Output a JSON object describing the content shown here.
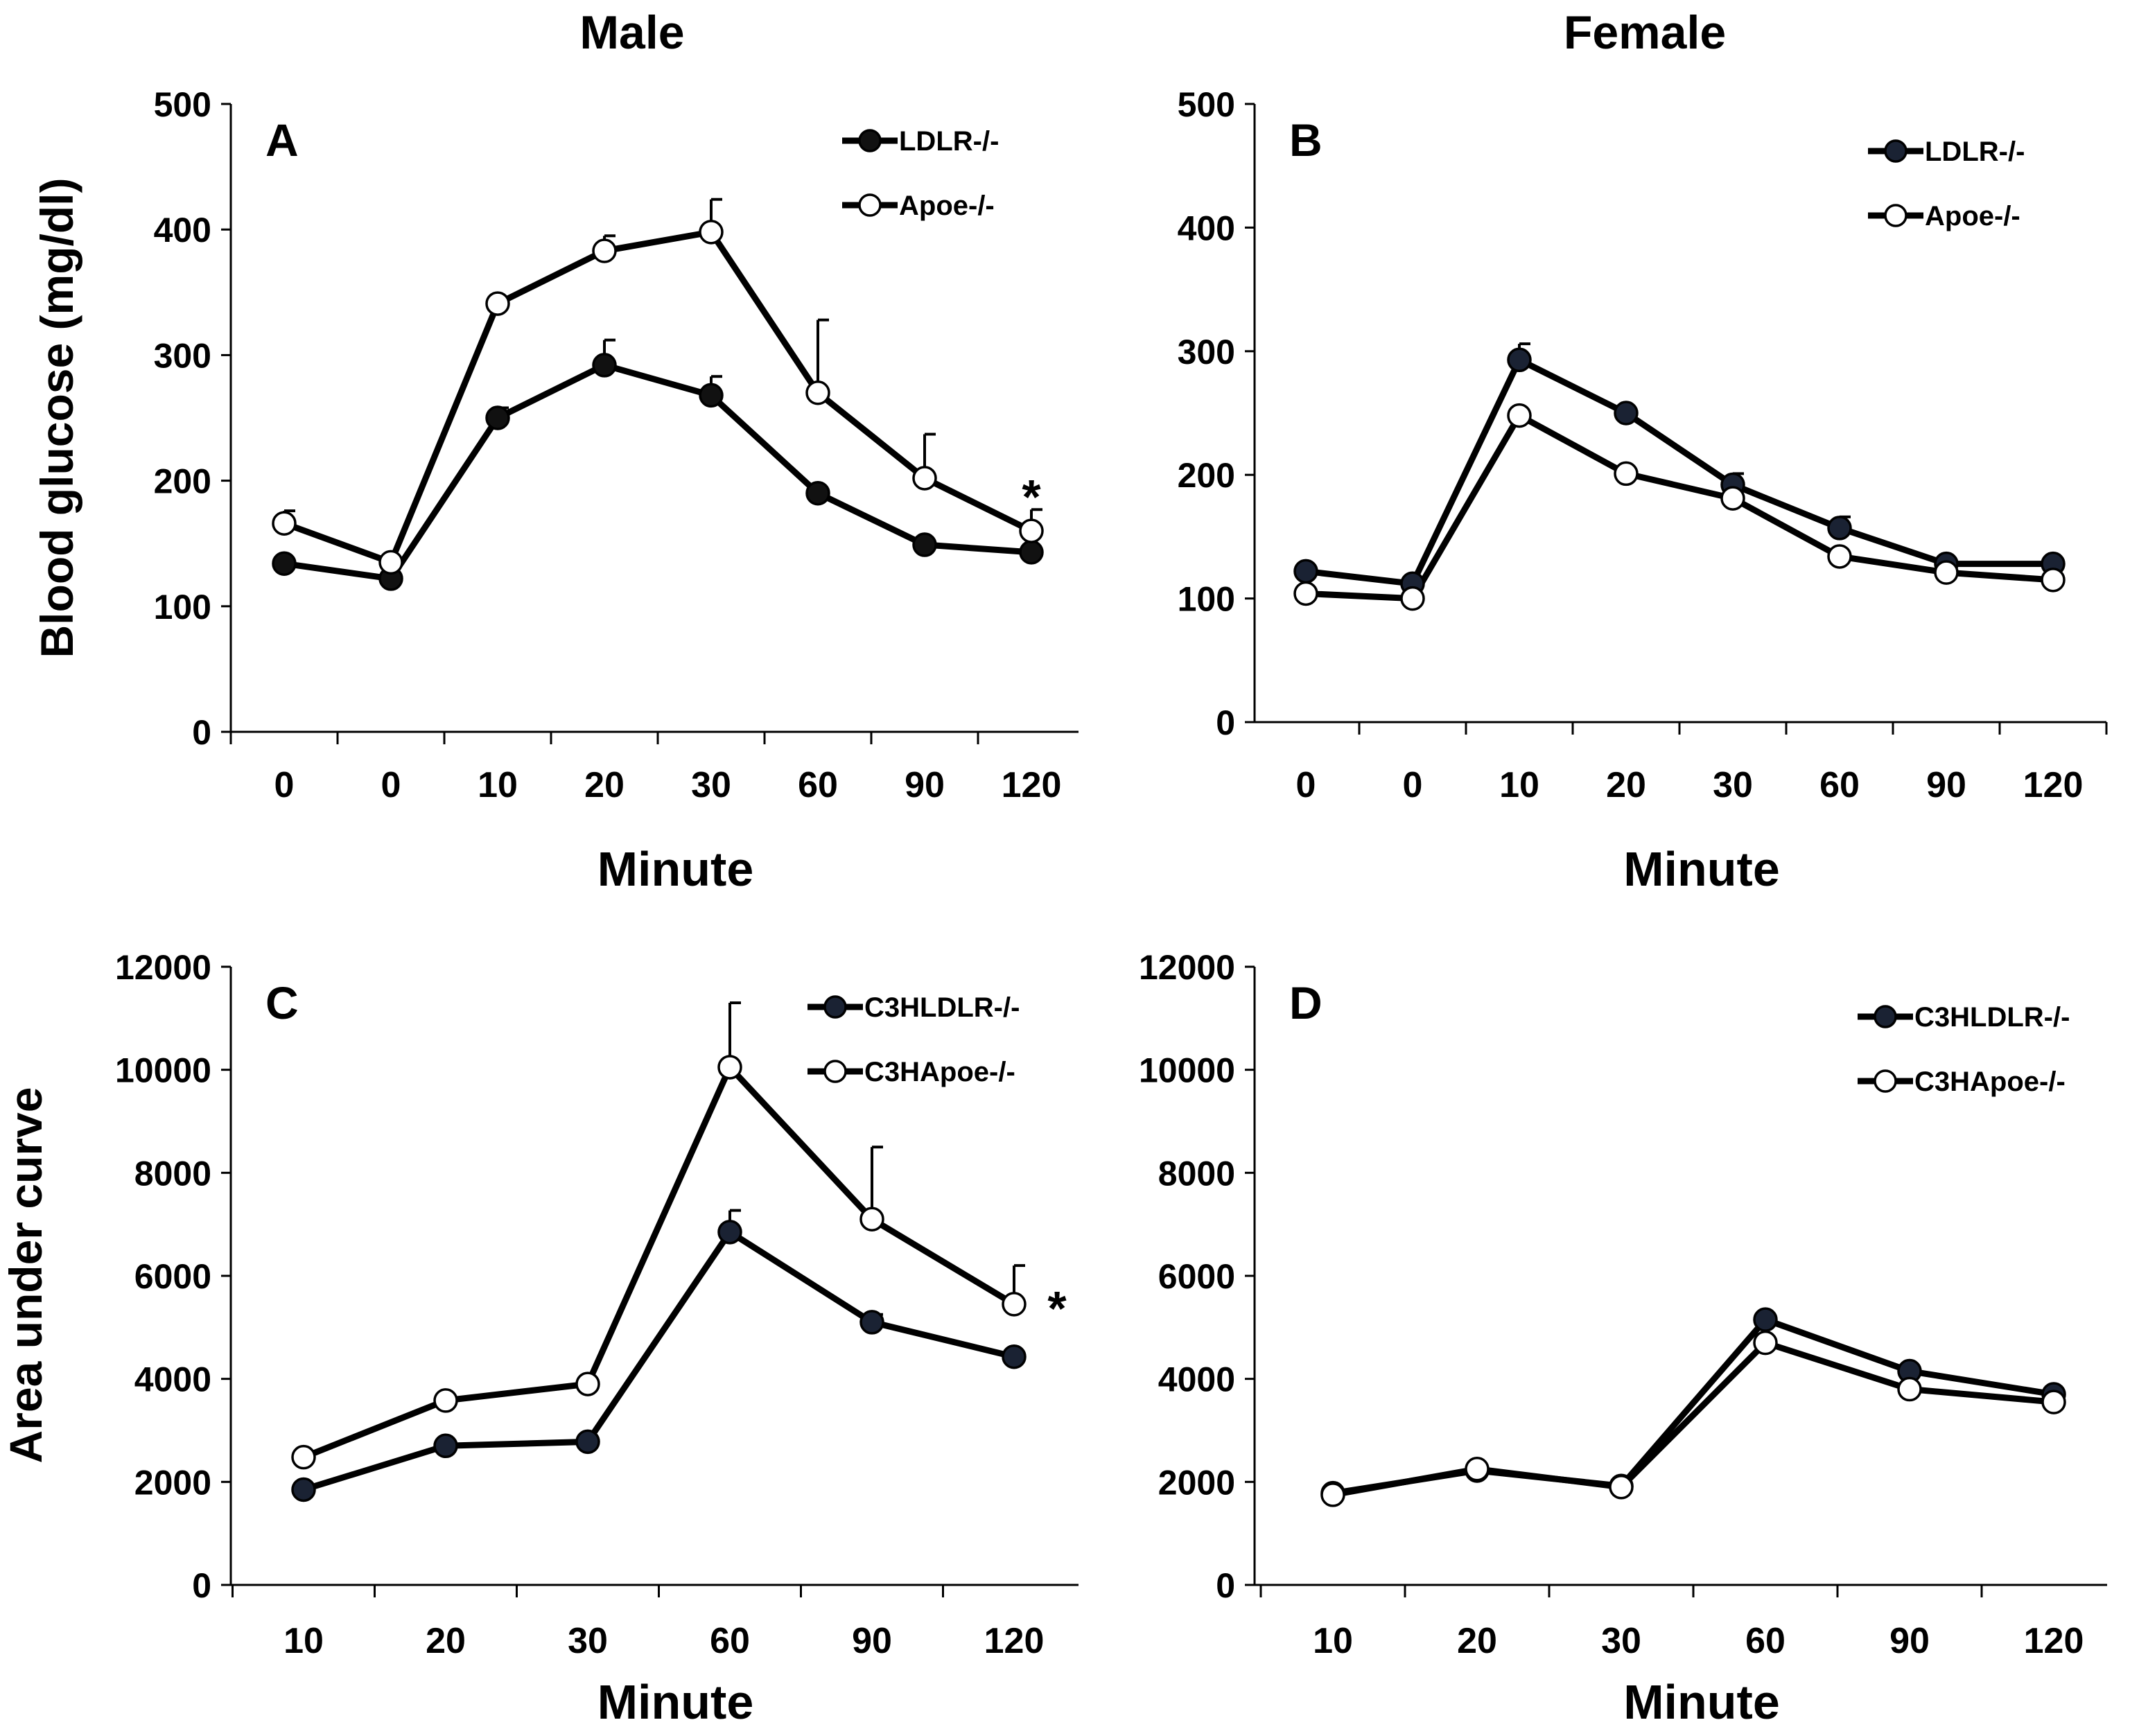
{
  "figure": {
    "headings": {
      "male": "Male",
      "female": "Female"
    },
    "colors": {
      "line": "#000000",
      "filled_marker": "#111111",
      "filled_marker_panels_bd": "#1a2233",
      "open_marker": "#ffffff",
      "background": "#ffffff"
    }
  },
  "chart_data": [
    {
      "panel": "A",
      "type": "line",
      "title": "",
      "ylabel": "Blood glucose (mg/dl)",
      "xlabel": "Minute",
      "categories": [
        "0",
        "0",
        "10",
        "20",
        "30",
        "60",
        "90",
        "120"
      ],
      "ylim": [
        0,
        500
      ],
      "yticks": [
        "0",
        "100",
        "200",
        "300",
        "400",
        "500"
      ],
      "legend_position": "top-right",
      "series": [
        {
          "name": "LDLR-/-",
          "marker": "filled",
          "values": [
            134,
            122,
            250,
            292,
            268,
            190,
            149,
            143
          ],
          "errors": [
            0,
            0,
            8,
            20,
            15,
            0,
            0,
            0
          ]
        },
        {
          "name": "Apoe-/-",
          "marker": "open",
          "values": [
            166,
            135,
            341,
            383,
            398,
            270,
            202,
            160
          ],
          "errors": [
            10,
            0,
            0,
            12,
            26,
            58,
            35,
            17
          ]
        }
      ],
      "annotations": [
        {
          "text": "*",
          "category_index": 7
        }
      ]
    },
    {
      "panel": "B",
      "type": "line",
      "title": "",
      "ylabel": "",
      "xlabel": "Minute",
      "categories": [
        "0",
        "0",
        "10",
        "20",
        "30",
        "60",
        "90",
        "120"
      ],
      "ylim": [
        0,
        500
      ],
      "yticks": [
        "0",
        "100",
        "200",
        "300",
        "400",
        "500"
      ],
      "legend_position": "top-right",
      "series": [
        {
          "name": "LDLR-/-",
          "marker": "filled",
          "values": [
            122,
            112,
            293,
            250,
            192,
            157,
            128,
            128
          ],
          "errors": [
            0,
            0,
            13,
            0,
            9,
            9,
            0,
            0
          ]
        },
        {
          "name": "Apoe-/-",
          "marker": "open",
          "values": [
            104,
            100,
            248,
            201,
            181,
            134,
            121,
            115
          ],
          "errors": [
            0,
            0,
            0,
            0,
            0,
            0,
            0,
            0
          ]
        }
      ],
      "annotations": []
    },
    {
      "panel": "C",
      "type": "line",
      "title": "",
      "ylabel": "Area under curve",
      "xlabel": "Minute",
      "categories": [
        "10",
        "20",
        "30",
        "60",
        "90",
        "120"
      ],
      "ylim": [
        0,
        12000
      ],
      "yticks": [
        "0",
        "2000",
        "4000",
        "6000",
        "8000",
        "10000",
        "12000"
      ],
      "legend_position": "top-right",
      "series": [
        {
          "name": "C3HLDLR-/-",
          "marker": "filled",
          "values": [
            1850,
            2700,
            2780,
            6850,
            5100,
            4430
          ],
          "errors": [
            0,
            0,
            0,
            420,
            150,
            0
          ]
        },
        {
          "name": "C3HApoe-/-",
          "marker": "open",
          "values": [
            2480,
            3580,
            3900,
            10050,
            7100,
            5450
          ],
          "errors": [
            0,
            0,
            0,
            1250,
            1400,
            750
          ]
        }
      ],
      "annotations": [
        {
          "text": "*",
          "category_index": 5
        }
      ]
    },
    {
      "panel": "D",
      "type": "line",
      "title": "",
      "ylabel": "",
      "xlabel": "Minute",
      "categories": [
        "10",
        "20",
        "30",
        "60",
        "90",
        "120"
      ],
      "ylim": [
        0,
        12000
      ],
      "yticks": [
        "0",
        "2000",
        "4000",
        "6000",
        "8000",
        "10000",
        "12000"
      ],
      "legend_position": "top-right",
      "series": [
        {
          "name": "C3HLDLR-/-",
          "marker": "filled",
          "values": [
            1780,
            2220,
            1920,
            5150,
            4150,
            3700
          ],
          "errors": [
            0,
            0,
            0,
            0,
            0,
            0
          ]
        },
        {
          "name": "C3HApoe-/-",
          "marker": "open",
          "values": [
            1750,
            2250,
            1900,
            4700,
            3800,
            3550
          ],
          "errors": [
            0,
            0,
            0,
            0,
            0,
            0
          ]
        }
      ],
      "annotations": []
    }
  ]
}
